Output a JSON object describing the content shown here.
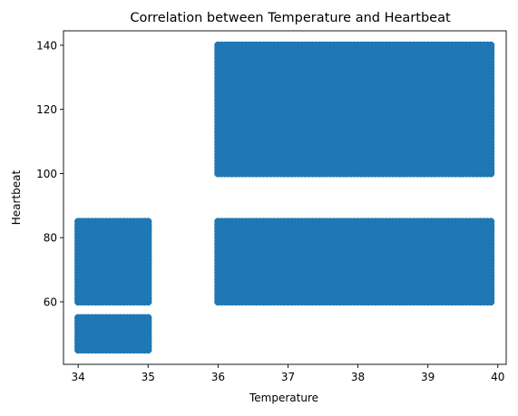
{
  "chart_data": {
    "type": "scatter",
    "title": "Correlation between Temperature and Heartbeat",
    "xlabel": "Temperature",
    "ylabel": "Heartbeat",
    "xlim": [
      33.79,
      40.12
    ],
    "ylim": [
      40.5,
      144.5
    ],
    "xticks": [
      34,
      35,
      36,
      37,
      38,
      39,
      40
    ],
    "yticks": [
      60,
      80,
      100,
      120,
      140
    ],
    "marker_color": "#1f77b4",
    "grid": false,
    "legend": "none",
    "point_clusters": [
      {
        "x_range": [
          34.0,
          35.0
        ],
        "y_range": [
          45,
          55
        ],
        "note_density": "dense"
      },
      {
        "x_range": [
          34.0,
          35.0
        ],
        "y_range": [
          60,
          85
        ],
        "note_density": "dense"
      },
      {
        "x_range": [
          36.0,
          39.9
        ],
        "y_range": [
          60,
          85
        ],
        "note_density": "dense"
      },
      {
        "x_range": [
          36.0,
          39.9
        ],
        "y_range": [
          100,
          140
        ],
        "note_density": "dense"
      }
    ]
  }
}
